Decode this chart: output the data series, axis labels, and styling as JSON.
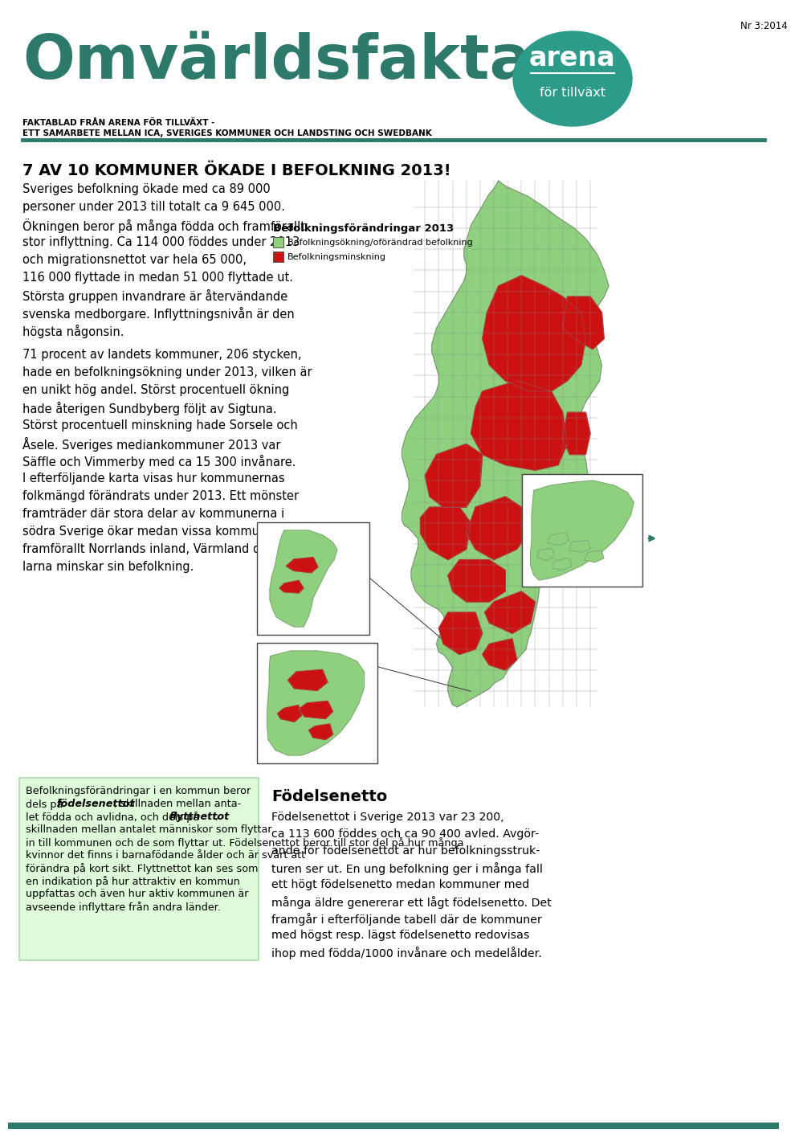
{
  "page_number": "Nr 3:2014",
  "title_main": "Omvärldsfakta",
  "logo_color": "#2D9B8A",
  "subtitle1": "FAKTABLAD FRÅN ARENA FÖR TILLVÄXT -",
  "subtitle2": "ETT SAMARBETE MELLAN ICA, SVERIGES KOMMUNER OCH LANDSTING OCH SWEDBANK",
  "divider_color": "#2D7A6B",
  "heading": "7 AV 10 KOMMUNER ÖKADE I BEFOLKNING 2013!",
  "para1_lines": [
    "Sveriges befolkning ökade med ca 89 000",
    "personer under 2013 till totalt ca 9 645 000.",
    "Ökningen beror på många födda och framförallt",
    "stor inflyttning. Ca 114 000 föddes under 2013",
    "och migrationsnettot var hela 65 000,",
    "116 000 flyttade in medan 51 000 flyttade ut.",
    "Största gruppen invandrare är återvändande",
    "svenska medborgare. Inflyttningsnivån är den",
    "högsta någonsin."
  ],
  "para2_lines": [
    "71 procent av landets kommuner, 206 stycken,",
    "hade en befolkningsökning under 2013, vilken är",
    "en unikt hög andel. Störst procentuell ökning",
    "hade återigen Sundbyberg följt av Sigtuna.",
    "Störst procentuell minskning hade Sorsele och",
    "Åsele. Sveriges mediankommuner 2013 var",
    "Säffle och Vimmerby med ca 15 300 invånare.",
    "I efterföljande karta visas hur kommunernas",
    "folkmängd förändrats under 2013. Ett mönster",
    "framträder där stora delar av kommunerna i",
    "södra Sverige ökar medan vissa kommuner i",
    "framförallt Norrlands inland, Värmland och Da-",
    "larna minskar sin befolkning."
  ],
  "map_legend_title": "Befolkningsförändringar 2013",
  "map_legend_green": "Befolkningsökning/oförändrad befolkning",
  "map_legend_red": "Befolkningsminskning",
  "map_green": "#8FD07F",
  "map_red": "#CC1111",
  "map_border": "#777777",
  "box_bg": "#DFFAD8",
  "box_border": "#AADDAA",
  "box_line1": "Befolkningsförändringar i en kommun beror",
  "box_line2a": "dels på ",
  "box_bold1": "födelsenettot",
  "box_line2b": ", skillnaden mellan anta-",
  "box_line3a": "let födda och avlidna, och dels på ",
  "box_bold2": "flyttnettot",
  "box_line3b": ",",
  "box_lines_rest": [
    "skillnaden mellan antalet människor som flyttar",
    "in till kommunen och de som flyttar ut. Födelsenettot beror till stor del på hur många",
    "kvinnor det finns i barnafödande ålder och är svårt att",
    "förändra på kort sikt. Flyttnettot kan ses som",
    "en indikation på hur attraktiv en kommun",
    "uppfattas och även hur aktiv kommunen är",
    "avseende inflyttare från andra länder."
  ],
  "right_heading": "Födelsenetto",
  "right_para_lines": [
    "Födelsenettot i Sverige 2013 var 23 200,",
    "ca 113 600 föddes och ca 90 400 avled. Avgör-",
    "ande för födelsenettot är hur befolkningsstruk-",
    "turen ser ut. En ung befolkning ger i många fall",
    "ett högt födelsenetto medan kommuner med",
    "många äldre genererar ett lågt födelsenetto. Det",
    "framgår i efterföljande tabell där de kommuner",
    "med högst resp. lägst födelsenetto redovisas",
    "ihop med födda/1000 invånare och medelålder."
  ],
  "main_title_color": "#2D7A6B",
  "bottom_bar_color": "#2D7A6B"
}
